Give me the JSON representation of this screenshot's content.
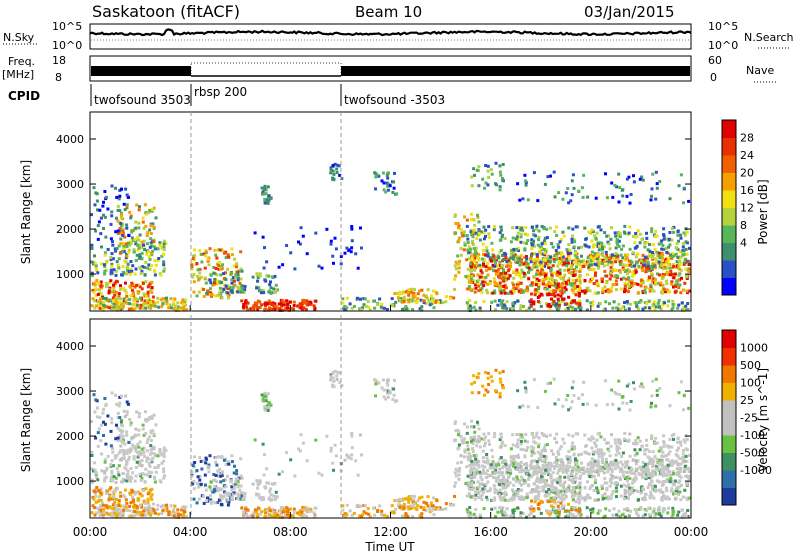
{
  "header": {
    "station": "Saskatoon (fitACF)",
    "beam": "Beam 10",
    "date": "03/Jan/2015"
  },
  "top_panels": {
    "nsky_label": "N.Sky",
    "nsky_ticks": [
      "10^5",
      "10^0"
    ],
    "nsearch_label": "N.Search",
    "nsearch_ticks": [
      "10^5",
      "10^0"
    ],
    "freq_label": "Freq.",
    "freq_unit": "[MHz]",
    "freq_ticks": [
      "18",
      "8"
    ],
    "nave_label": "Nave",
    "nave_ticks": [
      "60",
      "0"
    ],
    "cpid_label": "CPID",
    "cpid_segments": [
      {
        "label": "twofsound 3503",
        "start_hr": 0,
        "end_hr": 4
      },
      {
        "label": "rbsp 200",
        "start_hr": 4,
        "end_hr": 10
      },
      {
        "label": "twofsound -3503",
        "start_hr": 10,
        "end_hr": 24
      }
    ]
  },
  "chart_data": [
    {
      "type": "heatmap",
      "name": "power",
      "ylabel": "Slant Range [km]",
      "yticks": [
        "1000",
        "2000",
        "3000",
        "4000"
      ],
      "ylim": [
        180,
        4600
      ],
      "xlim": [
        0,
        24
      ],
      "colorbar": {
        "label": "Power [dB]",
        "ticks": [
          "28",
          "24",
          "20",
          "16",
          "12",
          "8",
          "4"
        ],
        "colors": [
          "#0000ff",
          "#2a50c8",
          "#3f8f6e",
          "#58b55a",
          "#b4d33c",
          "#f0e010",
          "#f5a000",
          "#f06000",
          "#e83000",
          "#e00000"
        ]
      }
    },
    {
      "type": "heatmap",
      "name": "velocity",
      "ylabel": "Slant Range [km]",
      "yticks": [
        "1000",
        "2000",
        "3000",
        "4000"
      ],
      "ylim": [
        180,
        4600
      ],
      "xlim": [
        0,
        24
      ],
      "xticks": [
        "00:00",
        "04:00",
        "08:00",
        "12:00",
        "16:00",
        "20:00",
        "00:00"
      ],
      "xlabel": "Time UT",
      "colorbar": {
        "label": "Velocity [m s^-1]",
        "ticks": [
          "1000",
          "500",
          "100",
          "25",
          "-25",
          "-100",
          "-500",
          "-1000"
        ],
        "colors": [
          "#1c3c9c",
          "#2f6fa8",
          "#3f9060",
          "#6ac040",
          "#c0c0c0",
          "#c0c0c0",
          "#f0b000",
          "#f07800",
          "#f03000",
          "#e00000"
        ]
      }
    }
  ]
}
